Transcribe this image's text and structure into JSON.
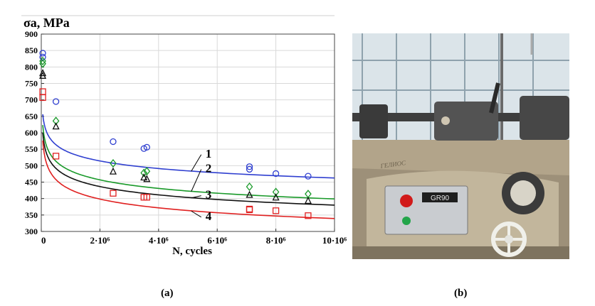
{
  "chart_data": {
    "type": "scatter",
    "ylabel": "σa, MPa",
    "xlabel": "N, cycles",
    "xlim": [
      0,
      10000000
    ],
    "ylim": [
      300,
      900
    ],
    "yticks": [
      300,
      350,
      400,
      450,
      500,
      550,
      600,
      650,
      700,
      750,
      800,
      850,
      900
    ],
    "xticks": [
      {
        "value": 0,
        "label": "0"
      },
      {
        "value": 2000000,
        "label": "2·10⁶"
      },
      {
        "value": 4000000,
        "label": "4·10⁶"
      },
      {
        "value": 6000000,
        "label": "6·10⁶"
      },
      {
        "value": 8000000,
        "label": "8·10⁶"
      },
      {
        "value": 10000000,
        "label": "10·10⁶"
      }
    ],
    "grid": true,
    "series": [
      {
        "name": "1",
        "color": "#2f3fd0",
        "marker": "circle",
        "points": [
          [
            50000,
            842
          ],
          [
            50000,
            830
          ],
          [
            500000,
            695
          ],
          [
            2450000,
            573
          ],
          [
            3500000,
            552
          ],
          [
            3600000,
            556
          ],
          [
            7100000,
            497
          ],
          [
            7100000,
            489
          ],
          [
            8000000,
            476
          ],
          [
            9100000,
            468
          ]
        ],
        "fit_x": [
          50000,
          10000000
        ],
        "fit": {
          "a": 1340,
          "b": 0.066
        },
        "label_pos": [
          5600000,
          525
        ]
      },
      {
        "name": "2",
        "color": "#1a9a2a",
        "marker": "diamond",
        "points": [
          [
            50000,
            818
          ],
          [
            50000,
            810
          ],
          [
            500000,
            636
          ],
          [
            2450000,
            507
          ],
          [
            3500000,
            478
          ],
          [
            3600000,
            483
          ],
          [
            7100000,
            436
          ],
          [
            8000000,
            420
          ],
          [
            9100000,
            414
          ]
        ],
        "fit_x": [
          50000,
          10000000
        ],
        "fit": {
          "a": 1552,
          "b": 0.0843
        },
        "label_pos": [
          5600000,
          480
        ]
      },
      {
        "name": "3",
        "color": "#111111",
        "marker": "triangle",
        "points": [
          [
            50000,
            780
          ],
          [
            50000,
            772
          ],
          [
            500000,
            618
          ],
          [
            2450000,
            481
          ],
          [
            3500000,
            463
          ],
          [
            3600000,
            458
          ],
          [
            7100000,
            410
          ],
          [
            8000000,
            402
          ],
          [
            9100000,
            392
          ]
        ],
        "fit_x": [
          50000,
          10000000
        ],
        "fit": {
          "a": 1520,
          "b": 0.086
        },
        "label_pos": [
          5600000,
          400
        ]
      },
      {
        "name": "4",
        "color": "#e02020",
        "marker": "square",
        "points": [
          [
            50000,
            725
          ],
          [
            50000,
            707
          ],
          [
            500000,
            529
          ],
          [
            2450000,
            416
          ],
          [
            3500000,
            404
          ],
          [
            3600000,
            404
          ],
          [
            7100000,
            368
          ],
          [
            7100000,
            366
          ],
          [
            8000000,
            363
          ],
          [
            9100000,
            348
          ]
        ],
        "fit_x": [
          50000,
          10000000
        ],
        "fit": {
          "a": 1700,
          "b": 0.1
        },
        "label_pos": [
          5600000,
          335
        ]
      }
    ]
  },
  "captions": {
    "a": "(a)",
    "b": "(b)"
  },
  "photo": {
    "panel_text": "GR90",
    "machine_plate": "ГЕЛИОС"
  },
  "colors": {
    "led": "#d11a1a",
    "button": "#23a54a",
    "wheel": "#f0f0ea"
  }
}
